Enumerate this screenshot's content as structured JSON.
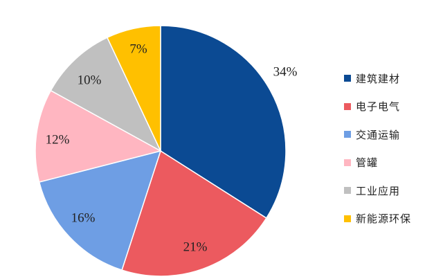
{
  "chart_data": {
    "type": "pie",
    "title": "",
    "legend_position": "right",
    "slices": [
      {
        "label": "建筑建材",
        "value": 34,
        "value_label": "34%",
        "color": "#0B4A93"
      },
      {
        "label": "电子电气",
        "value": 21,
        "value_label": "21%",
        "color": "#EC5A5F"
      },
      {
        "label": "交通运输",
        "value": 16,
        "value_label": "16%",
        "color": "#6E9EE4"
      },
      {
        "label": "管罐",
        "value": 12,
        "value_label": "12%",
        "color": "#FFB6C1"
      },
      {
        "label": "工业应用",
        "value": 10,
        "value_label": "10%",
        "color": "#C0C0C0"
      },
      {
        "label": "新能源环保",
        "value": 7,
        "value_label": "7%",
        "color": "#FFC000"
      }
    ]
  }
}
